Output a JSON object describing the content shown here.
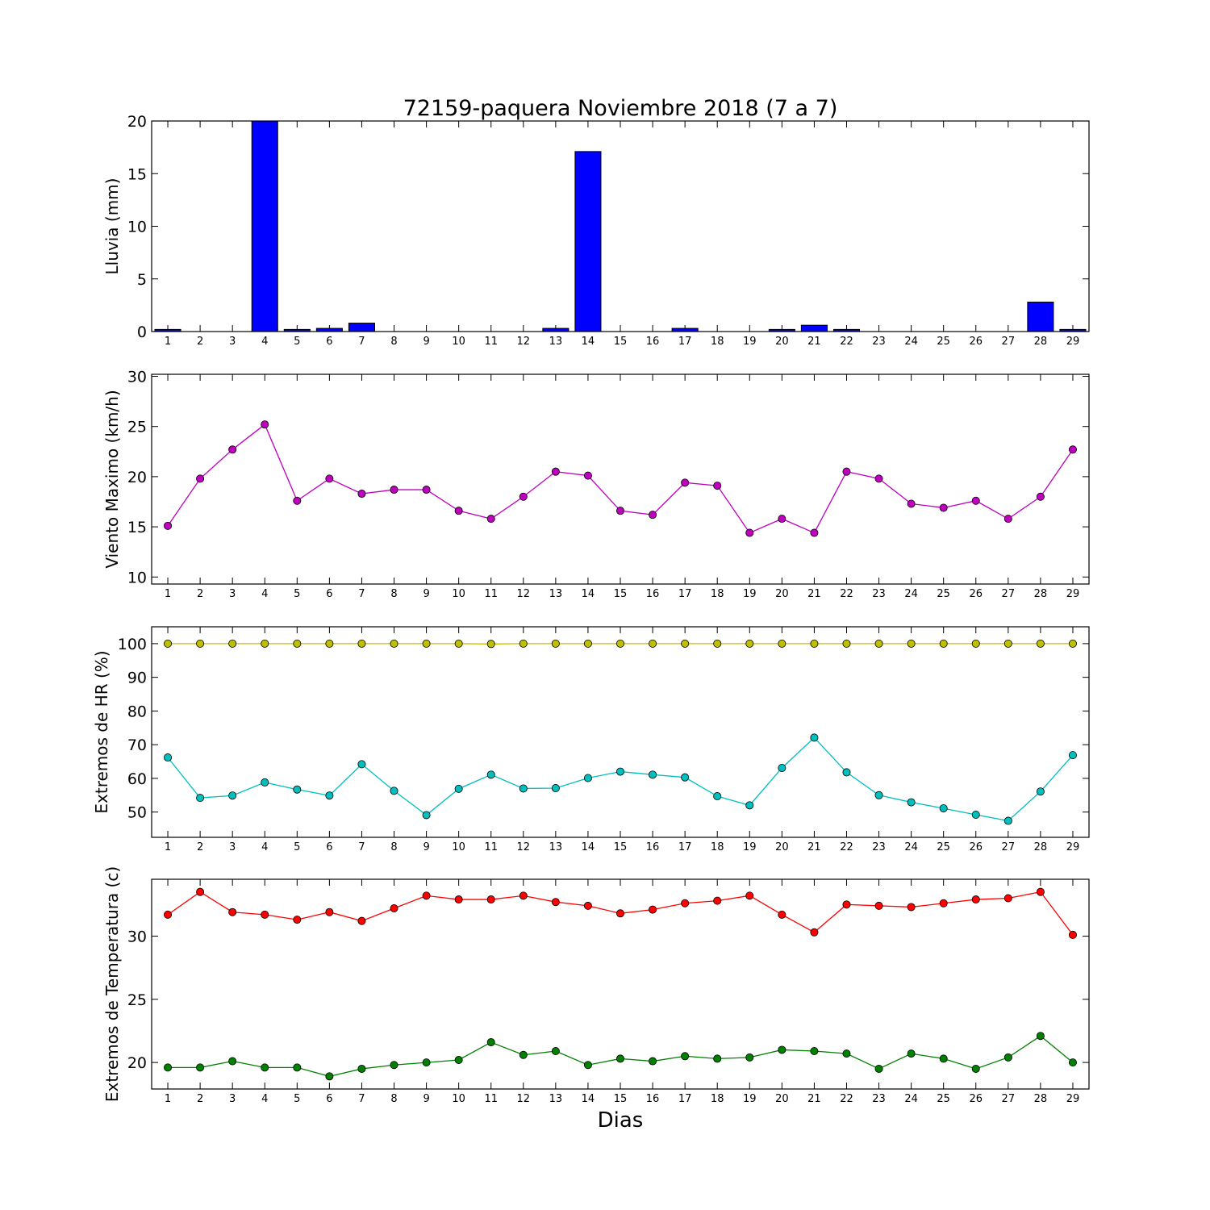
{
  "figure_title": "72159-paquera Noviembre 2018  (7 a 7)",
  "xlabel": "Dias",
  "chart_data": [
    {
      "type": "bar",
      "ylabel": "Lluvia (mm)",
      "ylim": [
        0,
        20
      ],
      "yticks": [
        0,
        5,
        10,
        15,
        20
      ],
      "categories": [
        "1",
        "2",
        "3",
        "4",
        "5",
        "6",
        "7",
        "8",
        "9",
        "10",
        "11",
        "12",
        "13",
        "14",
        "15",
        "16",
        "17",
        "18",
        "19",
        "20",
        "21",
        "22",
        "23",
        "24",
        "25",
        "26",
        "27",
        "28",
        "29"
      ],
      "bar_color": "#0000ff",
      "series": [
        {
          "values": [
            0.2,
            0,
            0,
            20,
            0.2,
            0.3,
            0.8,
            0,
            0,
            0,
            0,
            0,
            0.3,
            17.1,
            0,
            0,
            0.3,
            0,
            0,
            0.2,
            0.6,
            0.2,
            0,
            0,
            0,
            0,
            0,
            2.8,
            0.2
          ]
        }
      ]
    },
    {
      "type": "line",
      "ylabel": "Viento Maximo (km/h)",
      "ylim": [
        9.3,
        30.2
      ],
      "yticks": [
        10,
        15,
        20,
        25,
        30
      ],
      "categories": [
        "1",
        "2",
        "3",
        "4",
        "5",
        "6",
        "7",
        "8",
        "9",
        "10",
        "11",
        "12",
        "13",
        "14",
        "15",
        "16",
        "17",
        "18",
        "19",
        "20",
        "21",
        "22",
        "23",
        "24",
        "25",
        "26",
        "27",
        "28",
        "29"
      ],
      "series": [
        {
          "color": "#bf00bf",
          "values": [
            15.1,
            19.8,
            22.7,
            25.2,
            17.6,
            19.8,
            18.3,
            18.7,
            18.7,
            16.6,
            15.8,
            18.0,
            20.5,
            20.1,
            16.6,
            16.2,
            19.4,
            19.1,
            14.4,
            15.8,
            14.4,
            20.5,
            19.8,
            17.3,
            16.9,
            17.6,
            15.8,
            18.0,
            22.7
          ]
        }
      ]
    },
    {
      "type": "line",
      "ylabel": "Extremos de HR (%)",
      "ylim": [
        42.5,
        105
      ],
      "yticks": [
        50,
        60,
        70,
        80,
        90,
        100
      ],
      "categories": [
        "1",
        "2",
        "3",
        "4",
        "5",
        "6",
        "7",
        "8",
        "9",
        "10",
        "11",
        "12",
        "13",
        "14",
        "15",
        "16",
        "17",
        "18",
        "19",
        "20",
        "21",
        "22",
        "23",
        "24",
        "25",
        "26",
        "27",
        "28",
        "29"
      ],
      "series": [
        {
          "color": "#bfbf00",
          "values": [
            100,
            100,
            100,
            100,
            100,
            100,
            100,
            100,
            100,
            100,
            99.9,
            100,
            100,
            100,
            100,
            100,
            100,
            100,
            100,
            100,
            100,
            100,
            100,
            100,
            100,
            100,
            100,
            100,
            100
          ]
        },
        {
          "color": "#00bfbf",
          "values": [
            66.2,
            54.2,
            54.9,
            58.8,
            56.7,
            54.9,
            64.2,
            56.3,
            49.1,
            56.9,
            61.1,
            57.0,
            57.1,
            60.1,
            62.0,
            61.1,
            60.3,
            54.7,
            52.0,
            63.1,
            72.1,
            61.8,
            55.0,
            52.9,
            51.1,
            49.2,
            47.4,
            56.1,
            66.9
          ]
        }
      ]
    },
    {
      "type": "line",
      "ylabel": "Extremos de Temperatura (c)",
      "ylim": [
        17.9,
        34.5
      ],
      "yticks": [
        20,
        25,
        30
      ],
      "categories": [
        "1",
        "2",
        "3",
        "4",
        "5",
        "6",
        "7",
        "8",
        "9",
        "10",
        "11",
        "12",
        "13",
        "14",
        "15",
        "16",
        "17",
        "18",
        "19",
        "20",
        "21",
        "22",
        "23",
        "24",
        "25",
        "26",
        "27",
        "28",
        "29"
      ],
      "series": [
        {
          "color": "#ff0000",
          "values": [
            31.7,
            33.5,
            31.9,
            31.7,
            31.3,
            31.9,
            31.2,
            32.2,
            33.2,
            32.9,
            32.9,
            33.2,
            32.7,
            32.4,
            31.8,
            32.1,
            32.6,
            32.8,
            33.2,
            31.7,
            30.3,
            32.5,
            32.4,
            32.3,
            32.6,
            32.9,
            33.0,
            33.5,
            30.1
          ]
        },
        {
          "color": "#008000",
          "values": [
            19.6,
            19.6,
            20.1,
            19.6,
            19.6,
            18.9,
            19.5,
            19.8,
            20.0,
            20.2,
            21.6,
            20.6,
            20.9,
            19.8,
            20.3,
            20.1,
            20.5,
            20.3,
            20.4,
            21.0,
            20.9,
            20.7,
            19.5,
            20.7,
            20.3,
            19.5,
            20.4,
            22.1,
            20.0
          ]
        }
      ]
    }
  ]
}
